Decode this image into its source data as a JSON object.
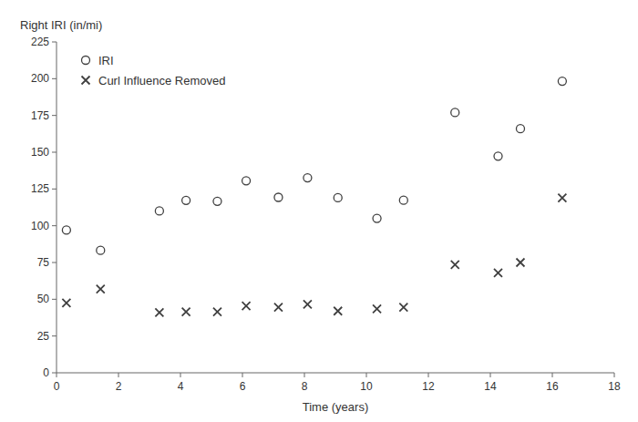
{
  "chart_data": {
    "type": "scatter",
    "x_label": "Time (years)",
    "y_label": "Right IRI (in/mi)",
    "x": [
      0.32,
      1.42,
      3.32,
      4.18,
      5.19,
      6.12,
      7.16,
      8.1,
      9.08,
      10.34,
      11.2,
      12.86,
      14.25,
      14.97,
      16.32
    ],
    "series": [
      {
        "name": "IRI",
        "color": "#404040",
        "marker": "circle",
        "values": [
          97.06,
          83.29,
          110.05,
          117.26,
          116.62,
          130.57,
          119.31,
          132.59,
          119.08,
          105.0,
          117.34,
          177.02,
          147.33,
          165.99,
          198.33
        ]
      },
      {
        "name": "Curl Influence Removed",
        "color": "#404040",
        "marker": "x",
        "values": [
          47.5,
          57.0,
          41.0,
          41.5,
          41.5,
          45.5,
          44.5,
          46.5,
          42.0,
          43.5,
          44.5,
          73.5,
          68.0,
          75.0,
          119.0
        ]
      }
    ],
    "xlim": [
      0,
      18
    ],
    "ylim": [
      0,
      225
    ],
    "xticks": [
      0,
      2,
      4,
      6,
      8,
      10,
      12,
      14,
      16,
      18
    ],
    "yticks": [
      0,
      25,
      50,
      75,
      100,
      125,
      150,
      175,
      200,
      225
    ],
    "grid": false,
    "legend": "upper left"
  }
}
